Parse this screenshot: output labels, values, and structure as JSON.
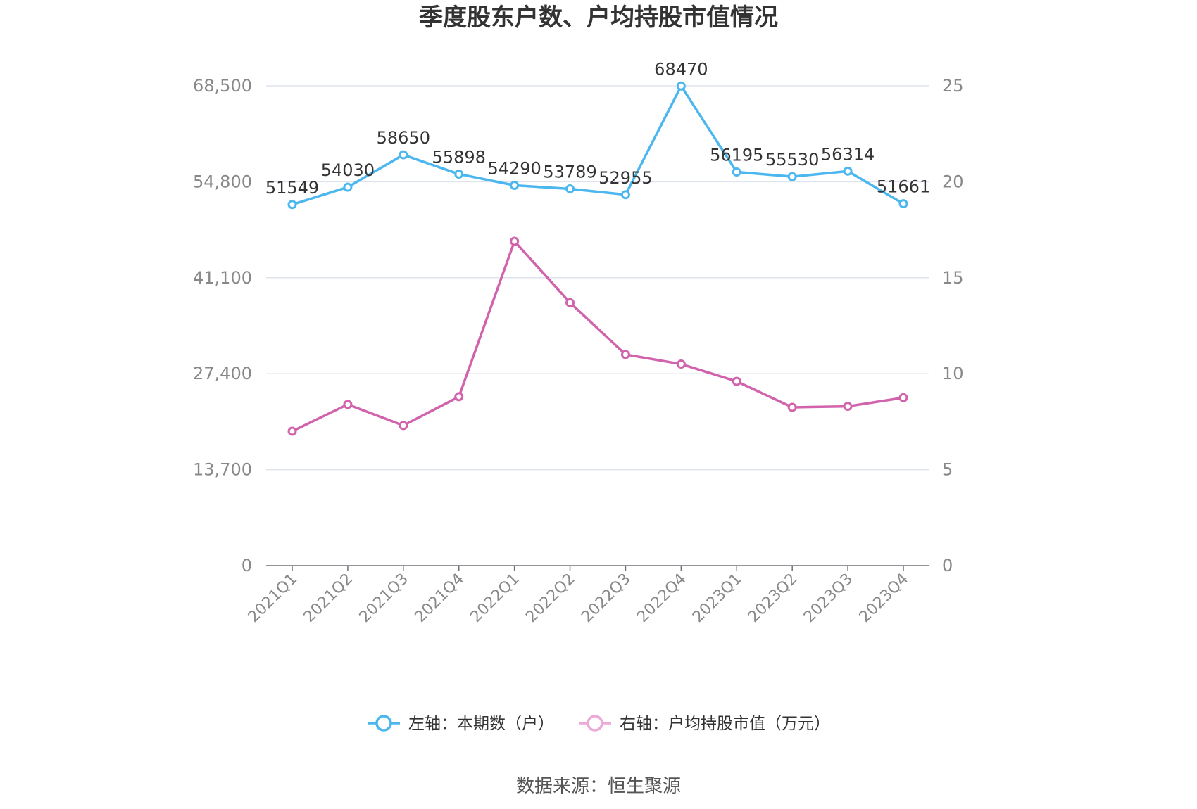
{
  "chart_data": {
    "type": "line",
    "title": "季度股东户数、户均持股市值情况",
    "categories": [
      "2021Q1",
      "2021Q2",
      "2021Q3",
      "2021Q4",
      "2022Q1",
      "2022Q2",
      "2022Q3",
      "2022Q4",
      "2023Q1",
      "2023Q2",
      "2023Q3",
      "2023Q4"
    ],
    "left_axis": {
      "ylim": [
        0,
        68500
      ],
      "ticks": [
        "0",
        "13,700",
        "27,400",
        "41,100",
        "54,800",
        "68,500"
      ]
    },
    "right_axis": {
      "ylim": [
        0,
        25
      ],
      "ticks": [
        "0",
        "5",
        "10",
        "15",
        "20",
        "25"
      ]
    },
    "series": [
      {
        "name": "左轴：本期数（户）",
        "axis": "left",
        "color": "#4cb7ee",
        "values": [
          51549,
          54030,
          58650,
          55898,
          54290,
          53789,
          52955,
          68470,
          56195,
          55530,
          56314,
          51661
        ],
        "show_labels": true
      },
      {
        "name": "右轴：户均持股市值（万元）",
        "axis": "right",
        "color": "#d163ad",
        "legend_color": "#eaa9d6",
        "values": [
          7.0,
          8.4,
          7.3,
          8.8,
          16.9,
          13.7,
          11.0,
          10.5,
          9.6,
          8.25,
          8.3,
          8.75
        ],
        "show_labels": false
      }
    ],
    "grid": true,
    "legend_position": "bottom"
  },
  "source_text": "数据来源：恒生聚源"
}
